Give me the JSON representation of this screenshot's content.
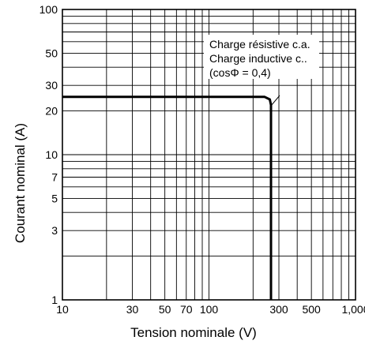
{
  "chart_data": {
    "type": "line",
    "xlabel": "Tension nominale (V)",
    "ylabel": "Courant nominal (A)",
    "x_scale": "log",
    "y_scale": "log",
    "xlim": [
      10,
      1000
    ],
    "ylim": [
      1,
      100
    ],
    "grid": true,
    "x_ticks": [
      {
        "value": 10,
        "label": "10"
      },
      {
        "value": 30,
        "label": "30"
      },
      {
        "value": 50,
        "label": "50"
      },
      {
        "value": 70,
        "label": "70"
      },
      {
        "value": 100,
        "label": "100"
      },
      {
        "value": 300,
        "label": "300"
      },
      {
        "value": 500,
        "label": "500"
      },
      {
        "value": 1000,
        "label": "1,000"
      }
    ],
    "y_ticks": [
      {
        "value": 1,
        "label": "1"
      },
      {
        "value": 3,
        "label": "3"
      },
      {
        "value": 5,
        "label": "5"
      },
      {
        "value": 7,
        "label": "7"
      },
      {
        "value": 10,
        "label": "10"
      },
      {
        "value": 20,
        "label": "20"
      },
      {
        "value": 30,
        "label": "30"
      },
      {
        "value": 50,
        "label": "50"
      },
      {
        "value": 100,
        "label": "100"
      }
    ],
    "series": [
      {
        "x": [
          10,
          240,
          260,
          265,
          265
        ],
        "y": [
          25,
          25,
          24,
          22,
          1
        ]
      }
    ],
    "annotation_lines": [
      "Charge résistive c.a.",
      "Charge inductive c..",
      "(cosΦ = 0,4)"
    ]
  }
}
